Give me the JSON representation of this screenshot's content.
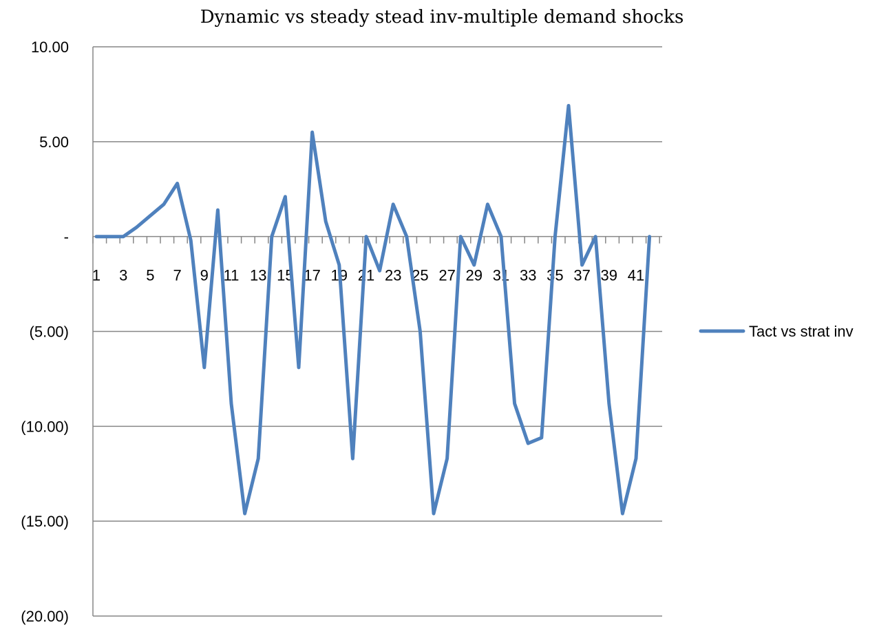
{
  "chart_data": {
    "type": "line",
    "title": "Dynamic vs steady stead inv-multiple demand shocks",
    "xlabel": "",
    "ylabel": "",
    "ylim": [
      -20,
      10
    ],
    "y_ticks": [
      10,
      5,
      0,
      -5,
      -10,
      -15,
      -20
    ],
    "y_tick_labels": [
      "10.00",
      "5.00",
      "-",
      "(5.00)",
      "(10.00)",
      "(15.00)",
      "(20.00)"
    ],
    "x": [
      1,
      2,
      3,
      4,
      5,
      6,
      7,
      8,
      9,
      10,
      11,
      12,
      13,
      14,
      15,
      16,
      17,
      18,
      19,
      20,
      21,
      22,
      23,
      24,
      25,
      26,
      27,
      28,
      29,
      30,
      31,
      32,
      33,
      34,
      35,
      36,
      37,
      38,
      39,
      40,
      41,
      42
    ],
    "x_tick_labels": [
      "1",
      "3",
      "5",
      "7",
      "9",
      "11",
      "13",
      "15",
      "17",
      "19",
      "21",
      "23",
      "25",
      "27",
      "29",
      "31",
      "33",
      "35",
      "37",
      "39",
      "41"
    ],
    "grid": "horizontal",
    "legend_position": "right",
    "series": [
      {
        "name": "Tact vs strat inv",
        "color": "#4F81BD",
        "values": [
          0,
          0,
          0,
          0.5,
          1.1,
          1.7,
          2.8,
          -0.2,
          -6.9,
          1.4,
          -8.8,
          -14.6,
          -11.7,
          0,
          2.1,
          -6.9,
          5.5,
          0.8,
          -1.5,
          -11.7,
          0,
          -1.8,
          1.7,
          0,
          -5,
          -14.6,
          -11.7,
          0,
          -1.5,
          1.7,
          0,
          -8.8,
          -10.9,
          -10.6,
          0,
          6.9,
          -1.5,
          0,
          -8.8,
          -14.6,
          -11.7,
          0
        ]
      }
    ]
  }
}
